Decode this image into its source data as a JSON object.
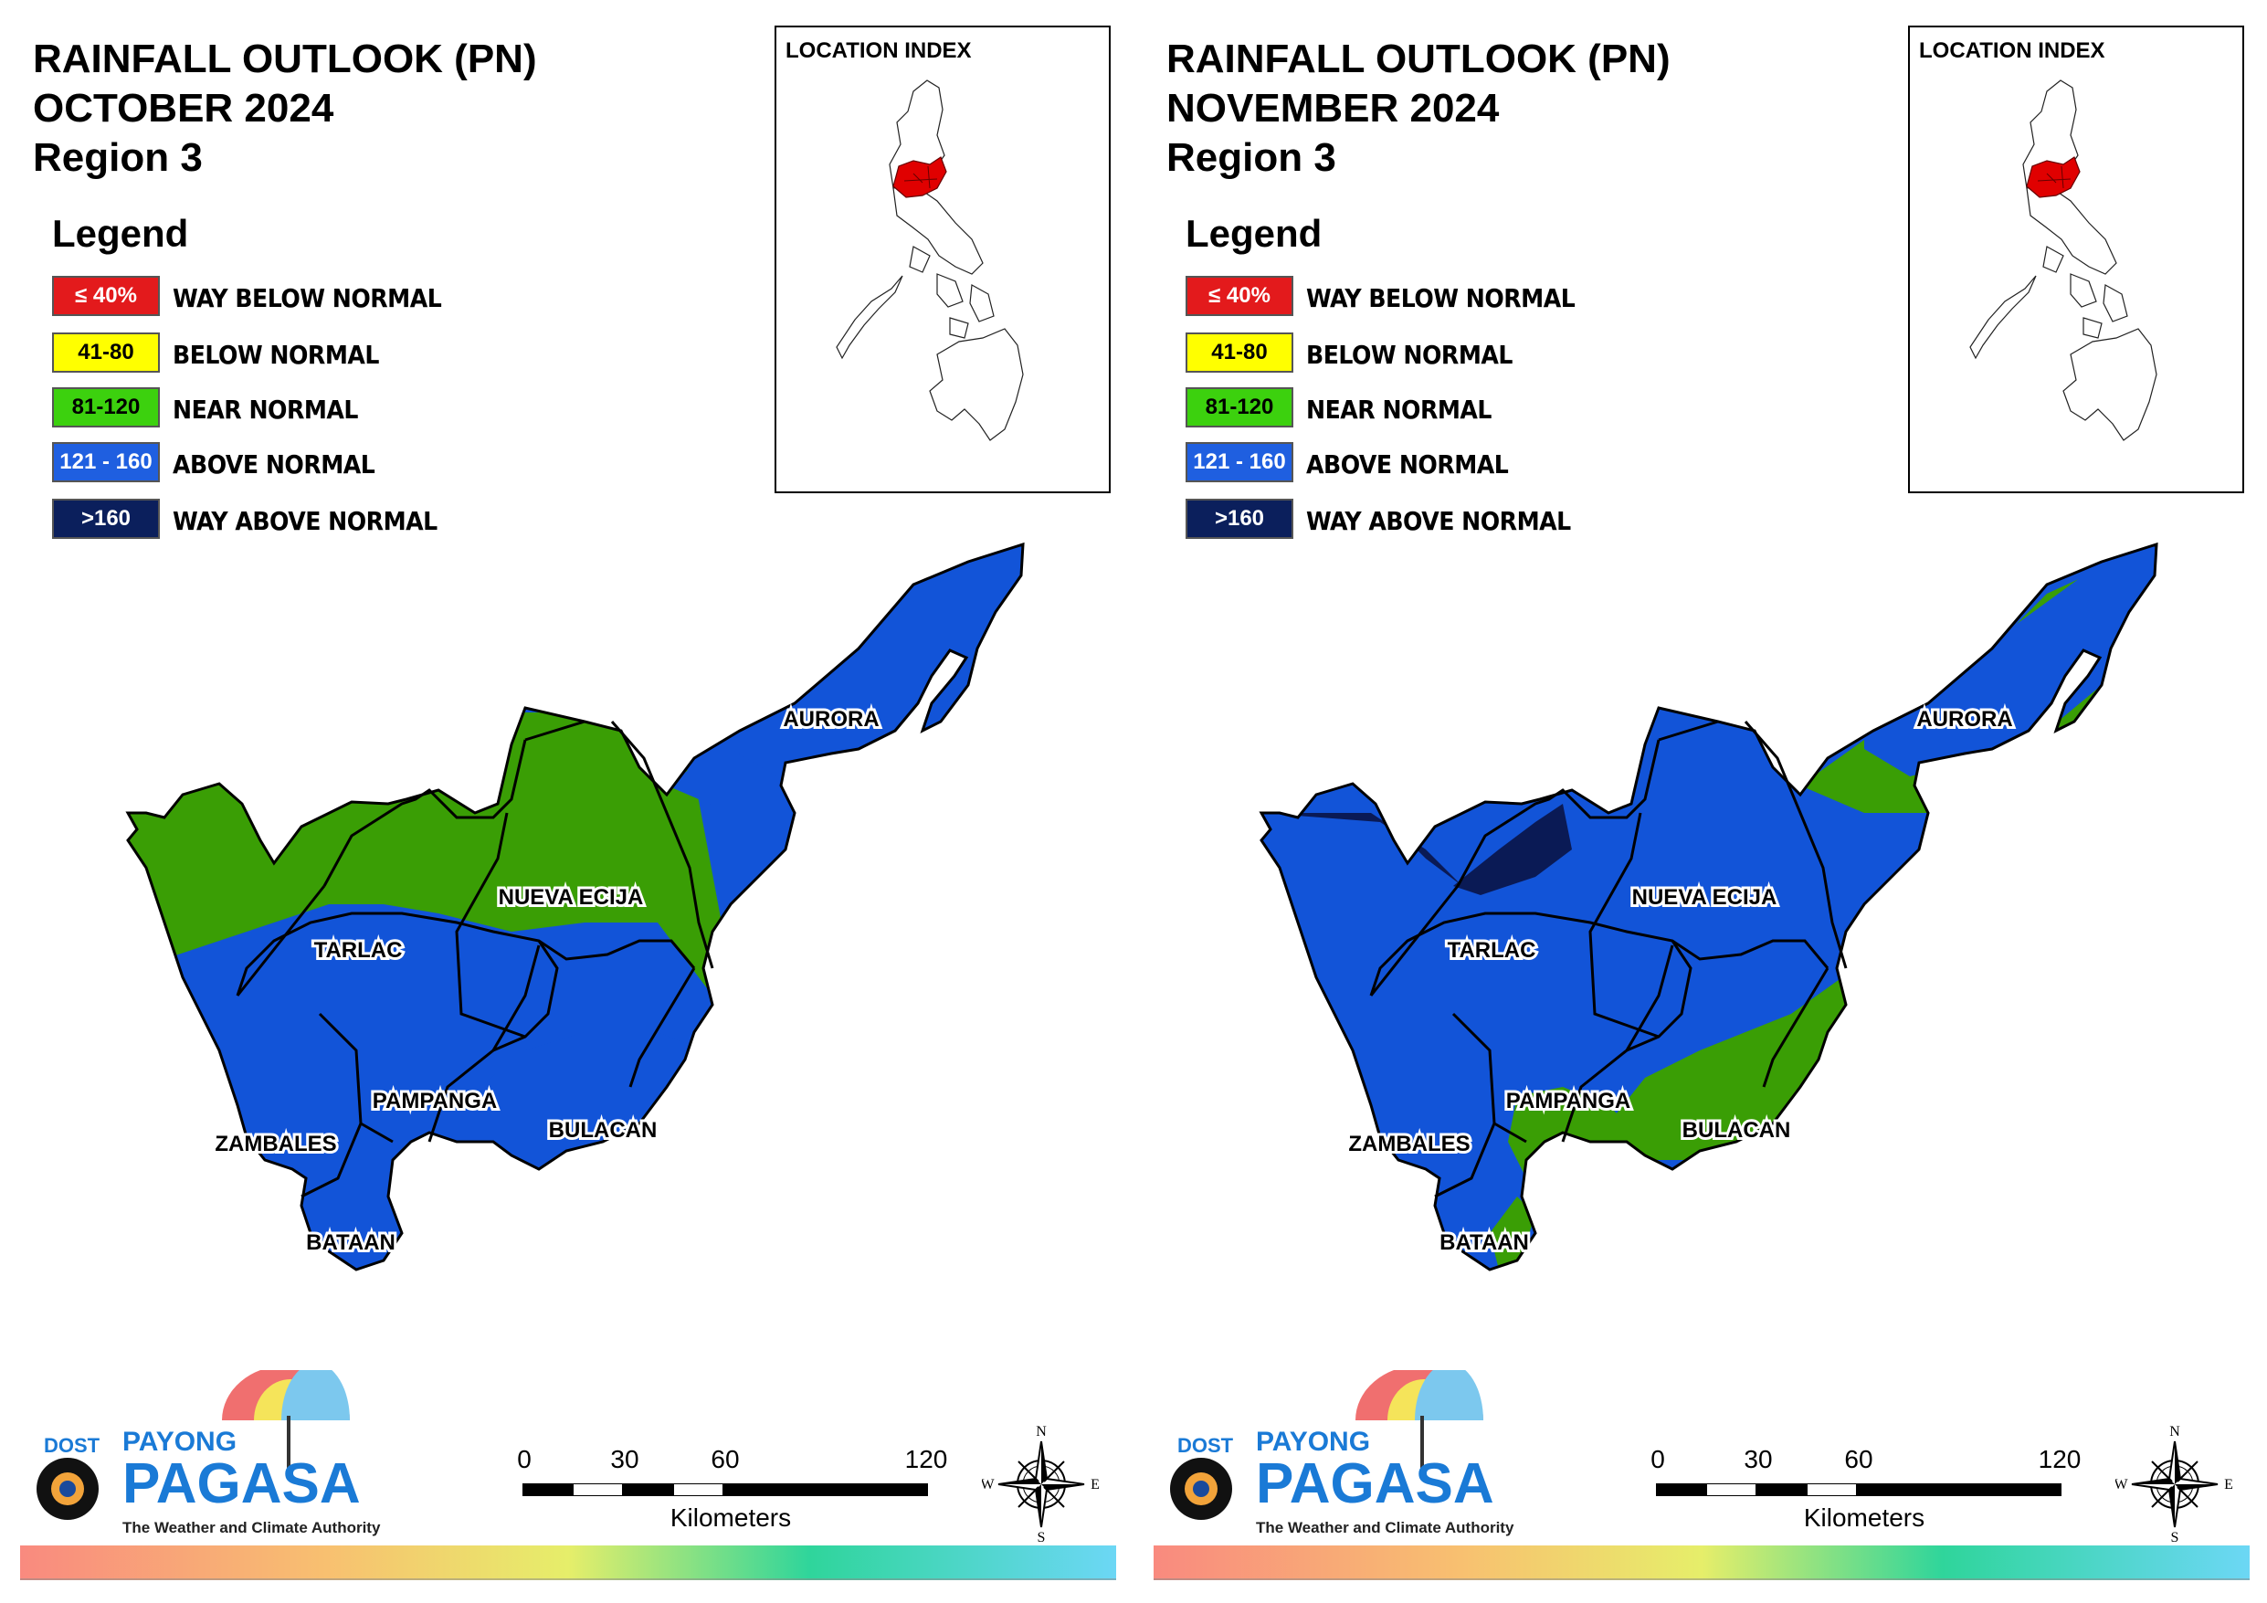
{
  "panels": [
    {
      "title": {
        "line1": "RAINFALL OUTLOOK (PN)",
        "line2": "OCTOBER 2024",
        "line3": "Region 3"
      },
      "map_class": {
        "north_tarlac": "near_normal",
        "nueva_ecija": "near_normal",
        "aurora_south": "above_normal",
        "bulacan": "above_normal",
        "pampanga": "above_normal",
        "zambales": "above_normal",
        "bataan": "above_normal"
      }
    },
    {
      "title": {
        "line1": "RAINFALL OUTLOOK (PN)",
        "line2": "NOVEMBER 2024",
        "line3": "Region 3"
      },
      "map_class": {
        "north_tarlac": "above_normal",
        "nueva_ecija": "above_normal",
        "aurora_south": "near_normal",
        "bulacan": "near_normal",
        "pampanga": "near_normal",
        "zambales": "above_normal",
        "bataan": "above_normal",
        "way_above_area": "way_above_normal"
      }
    }
  ],
  "legend": {
    "title": "Legend",
    "items": [
      {
        "range": "≤ 40%",
        "label": "WAY BELOW NORMAL",
        "color": "#e31a1c",
        "text_color": "#ffffff"
      },
      {
        "range": "41-80",
        "label": "BELOW NORMAL",
        "color": "#ffff00",
        "text_color": "#000000"
      },
      {
        "range": "81-120",
        "label": "NEAR NORMAL",
        "color": "#3cd10e",
        "text_color": "#000000"
      },
      {
        "range": "121 - 160",
        "label": "ABOVE NORMAL",
        "color": "#1f5fe0",
        "text_color": "#ffffff"
      },
      {
        "range": ">160",
        "label": "WAY ABOVE NORMAL",
        "color": "#0b1f5c",
        "text_color": "#ffffff"
      }
    ]
  },
  "location_index": {
    "title": "LOCATION INDEX",
    "highlight_color": "#e00000"
  },
  "provinces": [
    "AURORA",
    "NUEVA ECIJA",
    "TARLAC",
    "PAMPANGA",
    "ZAMBALES",
    "BULACAN",
    "BATAAN"
  ],
  "colors": {
    "near_normal": "#3a9e05",
    "above_normal": "#1254d8",
    "way_above_normal": "#0a1a55"
  },
  "scale_bar": {
    "ticks": [
      "0",
      "30",
      "60",
      "120"
    ],
    "unit": "Kilometers"
  },
  "compass": {
    "n": "N",
    "s": "S",
    "e": "E",
    "w": "W"
  },
  "logo": {
    "dost": "DOST",
    "payong": "PAYONG",
    "pagasa": "PAGASA",
    "tagline": "The Weather and Climate Authority"
  }
}
